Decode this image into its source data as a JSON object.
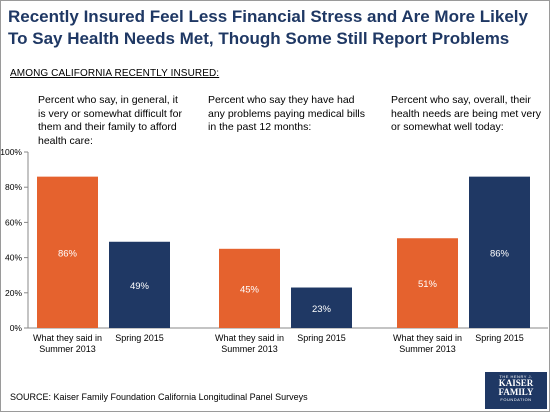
{
  "title": "Recently Insured Feel Less Financial Stress and Are More Likely To Say Health Needs Met, Though Some Still Report Problems",
  "subtitle": "AMONG CALIFORNIA RECENTLY INSURED:",
  "source": "SOURCE: Kaiser Family Foundation California Longitudinal Panel Surveys",
  "logo": {
    "line1": "THE HENRY J.",
    "line2": "KAISER",
    "line3": "FAMILY",
    "line4": "FOUNDATION"
  },
  "colors": {
    "summer2013": "#e5622e",
    "spring2015": "#1f3864",
    "title": "#1f3864"
  },
  "chart_data": {
    "type": "bar",
    "yticks": [
      "0%",
      "20%",
      "40%",
      "60%",
      "80%",
      "100%"
    ],
    "ylim": [
      0,
      100
    ],
    "grid": false,
    "panels": [
      {
        "description": "Percent who say, in general, it is very or somewhat difficult for them and their family to afford health care:",
        "bars": [
          {
            "category": "What they said in Summer 2013",
            "value": 86,
            "label": "86%"
          },
          {
            "category": "Spring 2015",
            "value": 49,
            "label": "49%"
          }
        ]
      },
      {
        "description": "Percent who say they have had any problems paying medical bills in the past 12 months:",
        "bars": [
          {
            "category": "What they said in Summer 2013",
            "value": 45,
            "label": "45%"
          },
          {
            "category": "Spring 2015",
            "value": 23,
            "label": "23%"
          }
        ]
      },
      {
        "description": "Percent who say, overall, their health needs are being met very or somewhat well today:",
        "bars": [
          {
            "category": "What they said in Summer 2013",
            "value": 51,
            "label": "51%"
          },
          {
            "category": "Spring 2015",
            "value": 86,
            "label": "86%"
          }
        ]
      }
    ]
  }
}
